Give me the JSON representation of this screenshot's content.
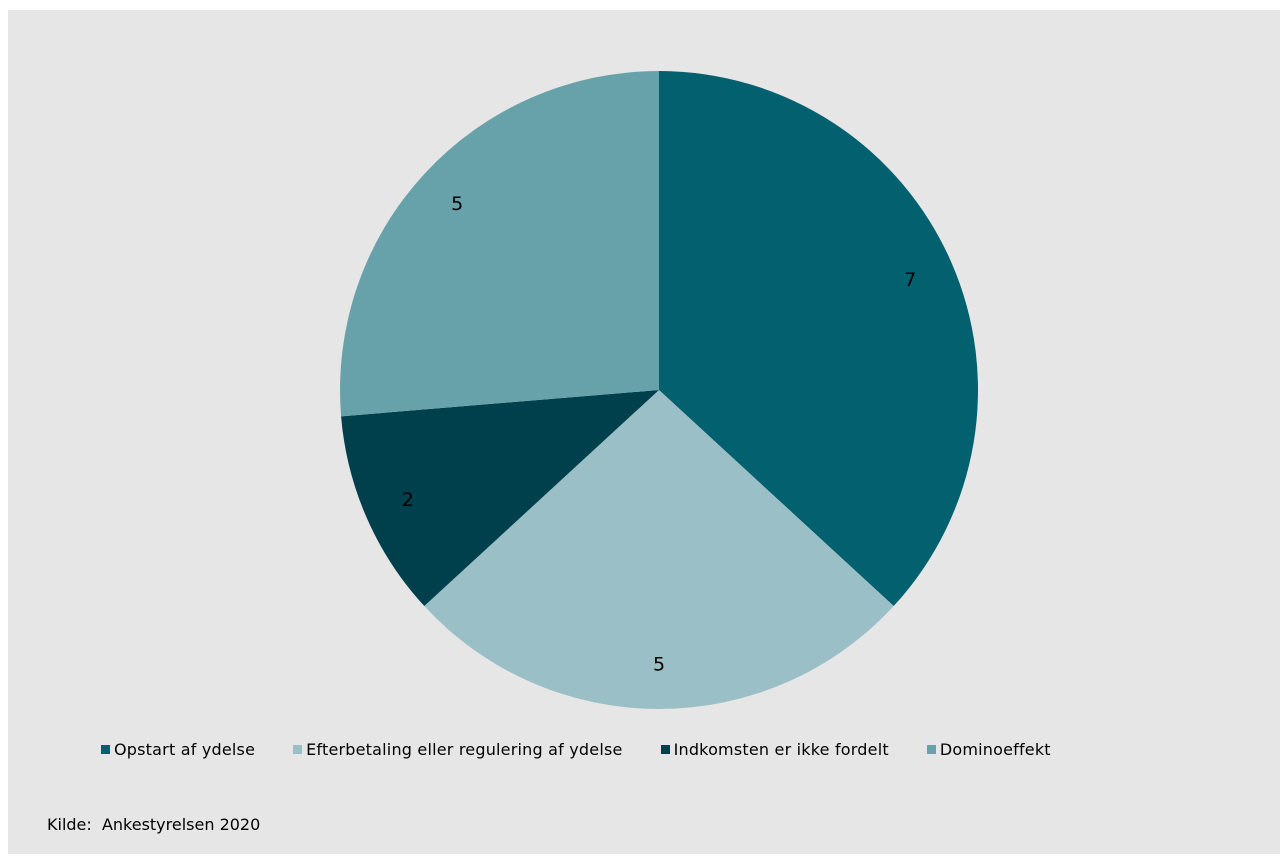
{
  "colors": {
    "background": "#e6e6e6"
  },
  "chart_data": {
    "type": "pie",
    "start": "12 o'clock",
    "direction": "clockwise",
    "legend_position": "bottom",
    "categories": [
      "Opstart af ydelse",
      "Efterbetaling eller regulering af ydelse",
      "Indkomsten er ikke fordelt",
      "Dominoeffekt"
    ],
    "values": [
      7,
      5,
      2,
      5
    ],
    "data_labels": [
      "7",
      "5",
      "2",
      "5"
    ],
    "colors": [
      "#02606f",
      "#9bbfc6",
      "#003f4c",
      "#67a2ab"
    ]
  },
  "source": "Kilde:  Ankestyrelsen 2020"
}
